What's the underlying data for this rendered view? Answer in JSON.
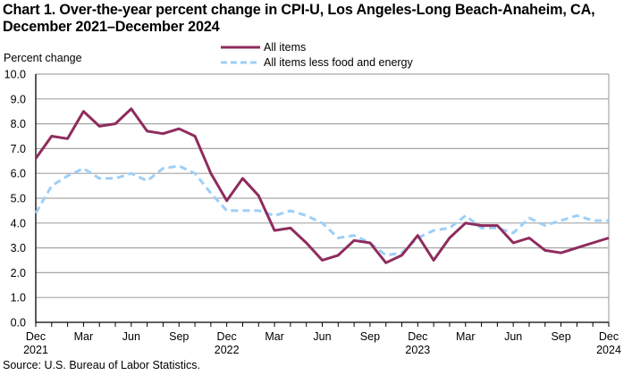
{
  "chart_data": {
    "type": "line",
    "title": "Chart 1. Over-the-year percent change in CPI-U, Los Angeles-Long Beach-Anaheim, CA, December 2021–December 2024",
    "title_lines": [
      "Chart 1. Over-the-year percent change in CPI-U, Los Angeles-Long  Beach-Anaheim,  CA,",
      "December  2021–December  2024"
    ],
    "ylabel": "Percent change",
    "xlabel": "",
    "ylim": [
      0,
      10
    ],
    "yticks": [
      "0.0",
      "1.0",
      "2.0",
      "3.0",
      "4.0",
      "5.0",
      "6.0",
      "7.0",
      "8.0",
      "9.0",
      "10.0"
    ],
    "grid": true,
    "legend_position": "top-center",
    "x": [
      "Dec 2021",
      "Jan 2022",
      "Feb 2022",
      "Mar 2022",
      "Apr 2022",
      "May 2022",
      "Jun 2022",
      "Jul 2022",
      "Aug 2022",
      "Sep 2022",
      "Oct 2022",
      "Nov 2022",
      "Dec 2022",
      "Jan 2023",
      "Feb 2023",
      "Mar 2023",
      "Apr 2023",
      "May 2023",
      "Jun 2023",
      "Jul 2023",
      "Aug 2023",
      "Sep 2023",
      "Oct 2023",
      "Nov 2023",
      "Dec 2023",
      "Jan 2024",
      "Feb 2024",
      "Mar 2024",
      "Apr 2024",
      "May 2024",
      "Jun 2024",
      "Jul 2024",
      "Aug 2024",
      "Sep 2024",
      "Oct 2024",
      "Nov 2024",
      "Dec 2024"
    ],
    "xtick_labels": [
      {
        "index": 0,
        "month": "Dec",
        "year": "2021"
      },
      {
        "index": 3,
        "month": "Mar",
        "year": ""
      },
      {
        "index": 6,
        "month": "Jun",
        "year": ""
      },
      {
        "index": 9,
        "month": "Sep",
        "year": ""
      },
      {
        "index": 12,
        "month": "Dec",
        "year": "2022"
      },
      {
        "index": 15,
        "month": "Mar",
        "year": ""
      },
      {
        "index": 18,
        "month": "Jun",
        "year": ""
      },
      {
        "index": 21,
        "month": "Sep",
        "year": ""
      },
      {
        "index": 24,
        "month": "Dec",
        "year": "2023"
      },
      {
        "index": 27,
        "month": "Mar",
        "year": ""
      },
      {
        "index": 30,
        "month": "Jun",
        "year": ""
      },
      {
        "index": 33,
        "month": "Sep",
        "year": ""
      },
      {
        "index": 36,
        "month": "Dec",
        "year": "2024"
      }
    ],
    "series": [
      {
        "name": "All items",
        "color": "#8E2C5E",
        "style": "solid",
        "values": [
          6.6,
          7.5,
          7.4,
          8.5,
          7.9,
          8.0,
          8.6,
          7.7,
          7.6,
          7.8,
          7.5,
          6.0,
          4.9,
          5.8,
          5.1,
          3.7,
          3.8,
          3.2,
          2.5,
          2.7,
          3.3,
          3.2,
          2.4,
          2.7,
          3.5,
          2.5,
          3.4,
          4.0,
          3.9,
          3.9,
          3.2,
          3.4,
          2.9,
          2.8,
          3.0,
          3.2,
          3.4
        ]
      },
      {
        "name": "All items less food and energy",
        "color": "#9DCFF7",
        "style": "dashed",
        "values": [
          4.4,
          5.5,
          5.9,
          6.2,
          5.8,
          5.8,
          6.0,
          5.7,
          6.2,
          6.3,
          6.0,
          5.2,
          4.5,
          4.5,
          4.5,
          4.3,
          4.5,
          4.3,
          4.0,
          3.4,
          3.5,
          3.2,
          2.7,
          2.8,
          3.4,
          3.7,
          3.8,
          4.3,
          3.8,
          3.8,
          3.6,
          4.2,
          3.9,
          4.1,
          4.3,
          4.1,
          4.1
        ]
      }
    ],
    "source": "Source: U.S. Bureau of Labor Statistics."
  }
}
